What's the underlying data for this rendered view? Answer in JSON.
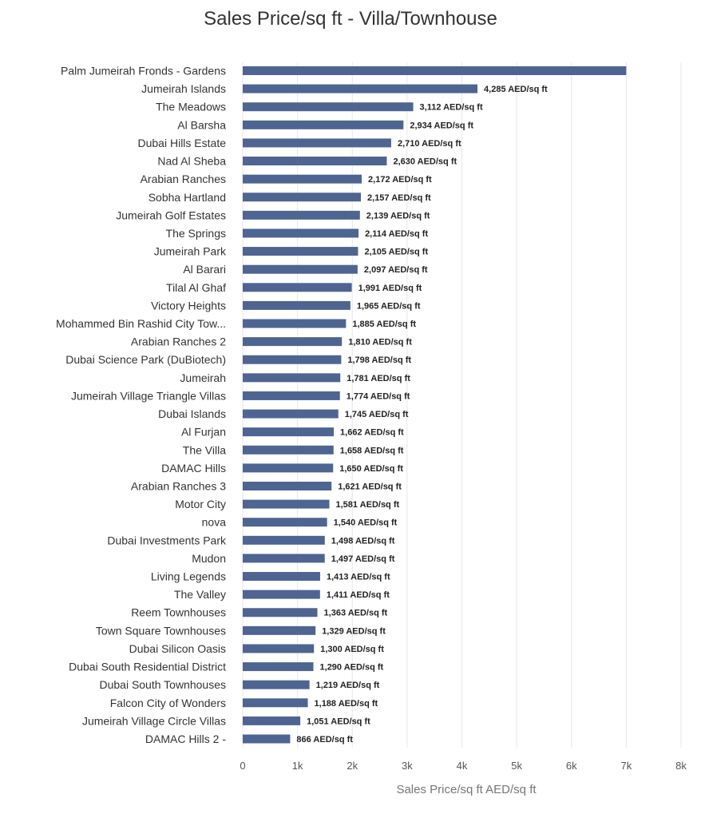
{
  "chart_data": {
    "type": "bar",
    "orientation": "horizontal",
    "title": "Sales Price/sq ft - Villa/Townhouse",
    "xlabel": "Sales Price/sq ft AED/sq ft",
    "ylabel": "",
    "xlim": [
      0,
      8000
    ],
    "value_suffix": " AED/sq ft",
    "ticks": [
      {
        "value": 0,
        "label": "0"
      },
      {
        "value": 1000,
        "label": "1k"
      },
      {
        "value": 2000,
        "label": "2k"
      },
      {
        "value": 3000,
        "label": "3k"
      },
      {
        "value": 4000,
        "label": "4k"
      },
      {
        "value": 5000,
        "label": "5k"
      },
      {
        "value": 6000,
        "label": "6k"
      },
      {
        "value": 7000,
        "label": "7k"
      },
      {
        "value": 8000,
        "label": "8k"
      }
    ],
    "categories": [
      "Palm Jumeirah Fronds - Gardens",
      "Jumeirah Islands",
      "The Meadows",
      "Al Barsha",
      "Dubai Hills Estate",
      "Nad Al Sheba",
      "Arabian Ranches",
      "Sobha Hartland",
      "Jumeirah Golf Estates",
      "The Springs",
      "Jumeirah Park",
      "Al Barari",
      "Tilal Al Ghaf",
      "Victory Heights",
      "Mohammed Bin Rashid City Tow...",
      "Arabian Ranches 2",
      "Dubai Science Park (DuBiotech)",
      "Jumeirah",
      "Jumeirah Village Triangle Villas",
      "Dubai Islands",
      "Al Furjan",
      "The Villa",
      "DAMAC Hills",
      "Arabian Ranches 3",
      "Motor City",
      "nova",
      "Dubai Investments Park",
      "Mudon",
      "Living Legends",
      "The Valley",
      "Reem Townhouses",
      "Town Square Townhouses",
      "Dubai Silicon Oasis",
      "Dubai South Residential District",
      "Dubai South Townhouses",
      "Falcon City of Wonders",
      "Jumeirah Village Circle Villas",
      "DAMAC Hills 2 -"
    ],
    "values": [
      7000,
      4285,
      3112,
      2934,
      2710,
      2630,
      2172,
      2157,
      2139,
      2114,
      2105,
      2097,
      1991,
      1965,
      1885,
      1810,
      1798,
      1781,
      1774,
      1745,
      1662,
      1658,
      1650,
      1621,
      1581,
      1540,
      1498,
      1497,
      1413,
      1411,
      1363,
      1329,
      1300,
      1290,
      1219,
      1188,
      1051,
      866
    ],
    "value_labels": [
      "",
      "4,285 AED/sq ft",
      "3,112 AED/sq ft",
      "2,934 AED/sq ft",
      "2,710 AED/sq ft",
      "2,630 AED/sq ft",
      "2,172 AED/sq ft",
      "2,157 AED/sq ft",
      "2,139 AED/sq ft",
      "2,114 AED/sq ft",
      "2,105 AED/sq ft",
      "2,097 AED/sq ft",
      "1,991 AED/sq ft",
      "1,965 AED/sq ft",
      "1,885 AED/sq ft",
      "1,810 AED/sq ft",
      "1,798 AED/sq ft",
      "1,781 AED/sq ft",
      "1,774 AED/sq ft",
      "1,745 AED/sq ft",
      "1,662 AED/sq ft",
      "1,658 AED/sq ft",
      "1,650 AED/sq ft",
      "1,621 AED/sq ft",
      "1,581 AED/sq ft",
      "1,540 AED/sq ft",
      "1,498 AED/sq ft",
      "1,497 AED/sq ft",
      "1,413 AED/sq ft",
      "1,411 AED/sq ft",
      "1,363 AED/sq ft",
      "1,329 AED/sq ft",
      "1,300 AED/sq ft",
      "1,290 AED/sq ft",
      "1,219 AED/sq ft",
      "1,188 AED/sq ft",
      "1,051 AED/sq ft",
      "866 AED/sq ft"
    ],
    "bar_color": "#4e6591",
    "grid": true
  }
}
